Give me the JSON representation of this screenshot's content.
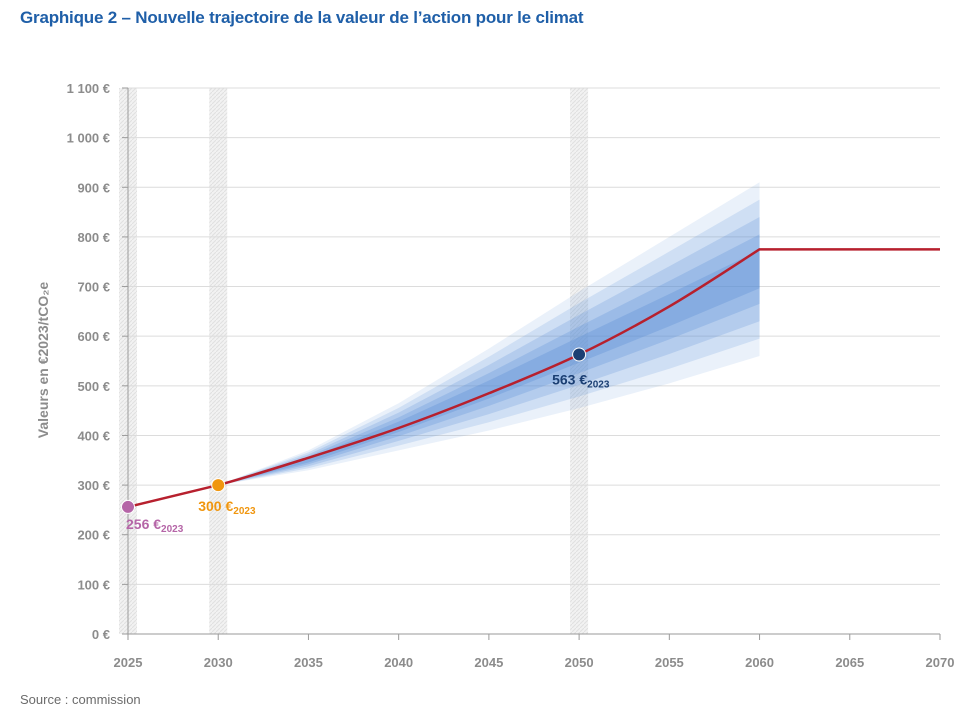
{
  "title": "Graphique 2 – Nouvelle trajectoire de la valeur de l’action pour le climat",
  "source": "Source : commission",
  "colors": {
    "trajectory": "#b7202e",
    "band": "#5b8fd6",
    "point_2025": "#b565a7",
    "point_2030": "#f0960f",
    "point_2050": "#1b3f73",
    "grid": "#dcdcdc",
    "axis_text": "#8c8c8c"
  },
  "chart_data": {
    "type": "line",
    "title": "Graphique 2 – Nouvelle trajectoire de la valeur de l’action pour le climat",
    "ylabel": "Valeurs en €2023/tCO₂e",
    "xlabel": "",
    "xlim": [
      2025,
      2070
    ],
    "ylim": [
      0,
      1100
    ],
    "x_ticks": [
      "2025",
      "2030",
      "2035",
      "2040",
      "2045",
      "2050",
      "2055",
      "2060",
      "2065",
      "2070"
    ],
    "y_ticks": [
      "0 €",
      "100 €",
      "200 €",
      "300 €",
      "400 €",
      "500 €",
      "600 €",
      "700 €",
      "800 €",
      "900 €",
      "1 000 €",
      "1 100 €"
    ],
    "grid": true,
    "highlighted_years": [
      2025,
      2030,
      2050
    ],
    "series": [
      {
        "x": [
          2025,
          2030,
          2035,
          2040,
          2045,
          2050,
          2055,
          2060,
          2065,
          2070
        ],
        "values": [
          256,
          300,
          355,
          415,
          485,
          563,
          660,
          775,
          775,
          775
        ]
      }
    ],
    "uncertainty_band": {
      "x": [
        2030,
        2035,
        2040,
        2045,
        2050,
        2055,
        2060
      ],
      "low": [
        300,
        330,
        370,
        410,
        455,
        505,
        560
      ],
      "high": [
        300,
        370,
        465,
        575,
        690,
        800,
        910
      ]
    },
    "annotations": [
      {
        "x": 2025,
        "y": 256,
        "label": "256 €",
        "sub": "2023",
        "color": "#b565a7"
      },
      {
        "x": 2030,
        "y": 300,
        "label": "300 €",
        "sub": "2023",
        "color": "#f0960f"
      },
      {
        "x": 2050,
        "y": 563,
        "label": "563 €",
        "sub": "2023",
        "color": "#1b3f73"
      }
    ]
  }
}
